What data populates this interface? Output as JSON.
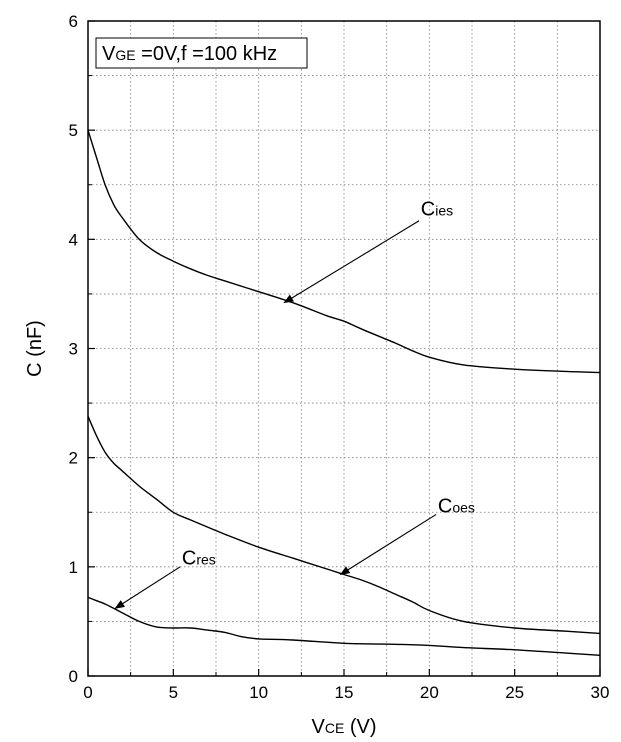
{
  "chart_data": {
    "type": "line",
    "title": "",
    "xlabel": {
      "main": "V",
      "sub": "CE",
      "rest": " (V)"
    },
    "ylabel": "C (nF)",
    "xlim": [
      0,
      30
    ],
    "ylim": [
      0,
      6
    ],
    "x_ticks": [
      0,
      5,
      10,
      15,
      20,
      25,
      30
    ],
    "x_tick_labels": [
      "0",
      "5",
      "10",
      "15",
      "20",
      "25",
      "30"
    ],
    "y_ticks": [
      0,
      1,
      2,
      3,
      4,
      5,
      6
    ],
    "y_tick_labels": [
      "0",
      "1",
      "2",
      "3",
      "4",
      "5",
      "6"
    ],
    "x_minor_step": 2.5,
    "y_minor_step": 0.5,
    "grid": "dotted",
    "condition_box": {
      "v": "V",
      "sub": "GE",
      "rest": " =0V,f =100 kHz"
    },
    "series": [
      {
        "x": [
          0,
          0.5,
          1,
          1.5,
          2,
          3,
          4,
          5,
          6,
          7,
          8,
          10,
          12,
          14,
          15,
          16,
          18,
          19,
          20,
          22,
          25,
          28,
          30
        ],
        "y": [
          5.0,
          4.75,
          4.5,
          4.32,
          4.2,
          4.0,
          3.88,
          3.8,
          3.73,
          3.67,
          3.62,
          3.52,
          3.42,
          3.3,
          3.25,
          3.18,
          3.05,
          2.98,
          2.92,
          2.85,
          2.81,
          2.79,
          2.78
        ]
      },
      {
        "x": [
          0,
          0.5,
          1,
          1.5,
          2,
          3,
          4,
          5,
          6,
          8,
          10,
          12,
          14,
          15,
          16,
          17,
          18,
          19,
          20,
          22,
          25,
          28,
          30
        ],
        "y": [
          2.38,
          2.2,
          2.05,
          1.95,
          1.88,
          1.74,
          1.62,
          1.5,
          1.43,
          1.3,
          1.18,
          1.08,
          0.98,
          0.93,
          0.88,
          0.82,
          0.75,
          0.68,
          0.6,
          0.5,
          0.44,
          0.41,
          0.39
        ]
      },
      {
        "x": [
          0,
          0.5,
          1,
          1.5,
          2,
          3,
          4,
          5,
          6,
          7,
          8,
          9,
          10,
          12,
          15,
          18,
          20,
          22,
          25,
          28,
          30
        ],
        "y": [
          0.72,
          0.69,
          0.66,
          0.62,
          0.58,
          0.5,
          0.45,
          0.44,
          0.44,
          0.42,
          0.4,
          0.36,
          0.34,
          0.33,
          0.3,
          0.29,
          0.28,
          0.26,
          0.24,
          0.21,
          0.19
        ]
      }
    ],
    "annotations": [
      {
        "main": "C",
        "sub": "ies",
        "text_x": 19.5,
        "text_y": 4.22,
        "arrow_from": [
          19.4,
          4.17
        ],
        "arrow_to": [
          11.5,
          3.42
        ]
      },
      {
        "main": "C",
        "sub": "oes",
        "text_x": 20.5,
        "text_y": 1.5,
        "arrow_from": [
          20.4,
          1.48
        ],
        "arrow_to": [
          14.8,
          0.93
        ]
      },
      {
        "main": "C",
        "sub": "res",
        "text_x": 5.5,
        "text_y": 1.02,
        "arrow_from": [
          5.4,
          1.0
        ],
        "arrow_to": [
          1.6,
          0.62
        ]
      }
    ]
  }
}
